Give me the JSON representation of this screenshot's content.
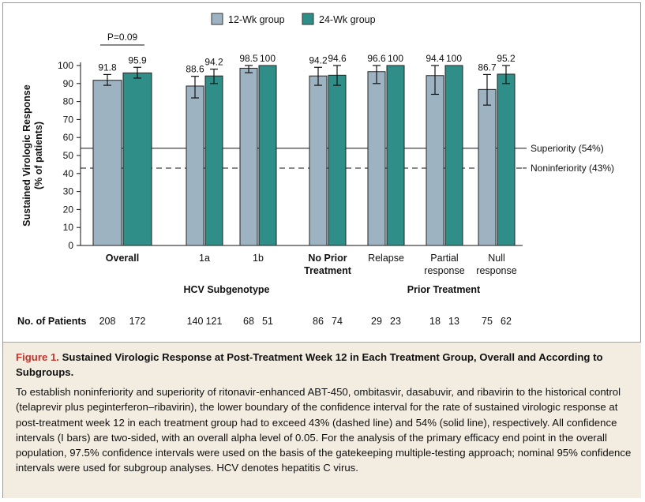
{
  "chart_data": {
    "type": "bar",
    "legend": [
      {
        "name": "12-Wk group",
        "color": "#9db3c2"
      },
      {
        "name": "24-Wk group",
        "color": "#2f8f88"
      }
    ],
    "ylabel": [
      "Sustained Virologic Response",
      "(% of patients)"
    ],
    "ylim": [
      0,
      100
    ],
    "yticks": [
      0,
      10,
      20,
      30,
      40,
      50,
      60,
      70,
      80,
      90,
      100
    ],
    "groups": [
      {
        "label": [
          "Overall"
        ],
        "bold": true,
        "n": [
          "208",
          "172"
        ],
        "bars": [
          {
            "value": 91.8,
            "label": "91.8",
            "ci": [
              89,
              95
            ]
          },
          {
            "value": 95.9,
            "label": "95.9",
            "ci": [
              93,
              99
            ]
          }
        ]
      },
      {
        "label": [
          "1a"
        ],
        "bold": false,
        "n": [
          "140",
          "121"
        ],
        "bars": [
          {
            "value": 88.6,
            "label": "88.6",
            "ci": [
              82,
              94
            ]
          },
          {
            "value": 94.2,
            "label": "94.2",
            "ci": [
              90,
              98
            ]
          }
        ]
      },
      {
        "label": [
          "1b"
        ],
        "bold": false,
        "n": [
          "68",
          "51"
        ],
        "bars": [
          {
            "value": 98.5,
            "label": "98.5",
            "ci": [
              96,
              100
            ]
          },
          {
            "value": 100,
            "label": "100",
            "ci": null
          }
        ]
      },
      {
        "label": [
          "No Prior",
          "Treatment"
        ],
        "bold": true,
        "n": [
          "86",
          "74"
        ],
        "bars": [
          {
            "value": 94.2,
            "label": "94.2",
            "ci": [
              89,
              99
            ]
          },
          {
            "value": 94.6,
            "label": "94.6",
            "ci": [
              89,
              100
            ]
          }
        ]
      },
      {
        "label": [
          "Relapse"
        ],
        "bold": false,
        "n": [
          "29",
          "23"
        ],
        "bars": [
          {
            "value": 96.6,
            "label": "96.6",
            "ci": [
              90,
              100
            ]
          },
          {
            "value": 100,
            "label": "100",
            "ci": null
          }
        ]
      },
      {
        "label": [
          "Partial",
          "response"
        ],
        "bold": false,
        "n": [
          "18",
          "13"
        ],
        "bars": [
          {
            "value": 94.4,
            "label": "94.4",
            "ci": [
              84,
              100
            ]
          },
          {
            "value": 100,
            "label": "100",
            "ci": null
          }
        ]
      },
      {
        "label": [
          "Null",
          "response"
        ],
        "bold": false,
        "n": [
          "75",
          "62"
        ],
        "bars": [
          {
            "value": 86.7,
            "label": "86.7",
            "ci": [
              78,
              95
            ]
          },
          {
            "value": 95.2,
            "label": "95.2",
            "ci": [
              90,
              100
            ]
          }
        ]
      }
    ],
    "reference_lines": [
      {
        "value": 54,
        "style": "solid",
        "label": "Superiority (54%)"
      },
      {
        "value": 43,
        "style": "dashed",
        "label": "Noninferiority (43%)"
      }
    ],
    "annotation": "P=0.09",
    "section_labels": [
      "HCV Subgenotype",
      "Prior Treatment"
    ],
    "n_label": "No. of Patients"
  },
  "caption": {
    "label": "Figure 1.",
    "title": "Sustained Virologic Response at Post-Treatment Week 12 in Each Treatment Group, Overall and According to Subgroups.",
    "body": "To establish noninferiority and superiority of ritonavir-enhanced ABT-450, ombitasvir, dasabuvir, and ribavirin to the historical control (telaprevir plus peginterferon–ribavirin), the lower boundary of the confidence interval for the rate of sustained virologic response at post-treatment week 12 in each treatment group had to exceed 43% (dashed line) and 54% (solid line), respectively. All confidence intervals (I bars) are two-sided, with an overall alpha level of 0.05. For the analysis of the primary efficacy end point in the overall population, 97.5% confidence intervals were used on the basis of the gatekeeping multiple-testing approach; nominal 95% confidence intervals were used for subgroup analyses. HCV denotes hepatitis C virus."
  }
}
